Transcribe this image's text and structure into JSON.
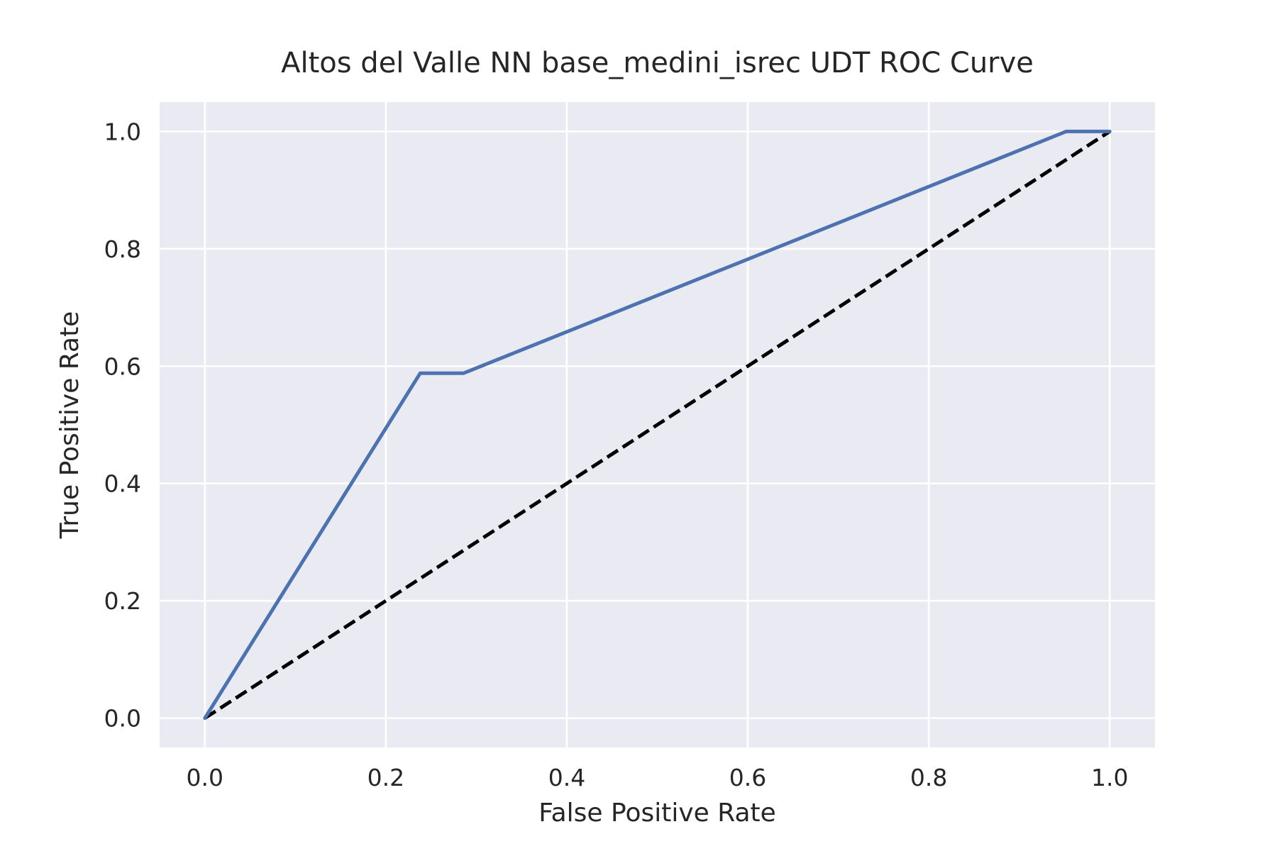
{
  "chart_data": {
    "type": "line",
    "title": "Altos del Valle NN base_medini_isrec UDT ROC Curve",
    "xlabel": "False Positive Rate",
    "ylabel": "True Positive Rate",
    "xlim": [
      -0.05,
      1.05
    ],
    "ylim": [
      -0.05,
      1.05
    ],
    "xticks": [
      "0.0",
      "0.2",
      "0.4",
      "0.6",
      "0.8",
      "1.0"
    ],
    "yticks": [
      "0.0",
      "0.2",
      "0.4",
      "0.6",
      "0.8",
      "1.0"
    ],
    "grid": true,
    "legend": "none",
    "series": [
      {
        "color": "#4c72b0",
        "style": "solid",
        "x": [
          0.0,
          0.238,
          0.286,
          0.952,
          1.0
        ],
        "y": [
          0.0,
          0.588,
          0.588,
          1.0,
          1.0
        ]
      },
      {
        "color": "#000000",
        "style": "dashed",
        "x": [
          0.0,
          1.0
        ],
        "y": [
          0.0,
          1.0
        ]
      }
    ]
  }
}
